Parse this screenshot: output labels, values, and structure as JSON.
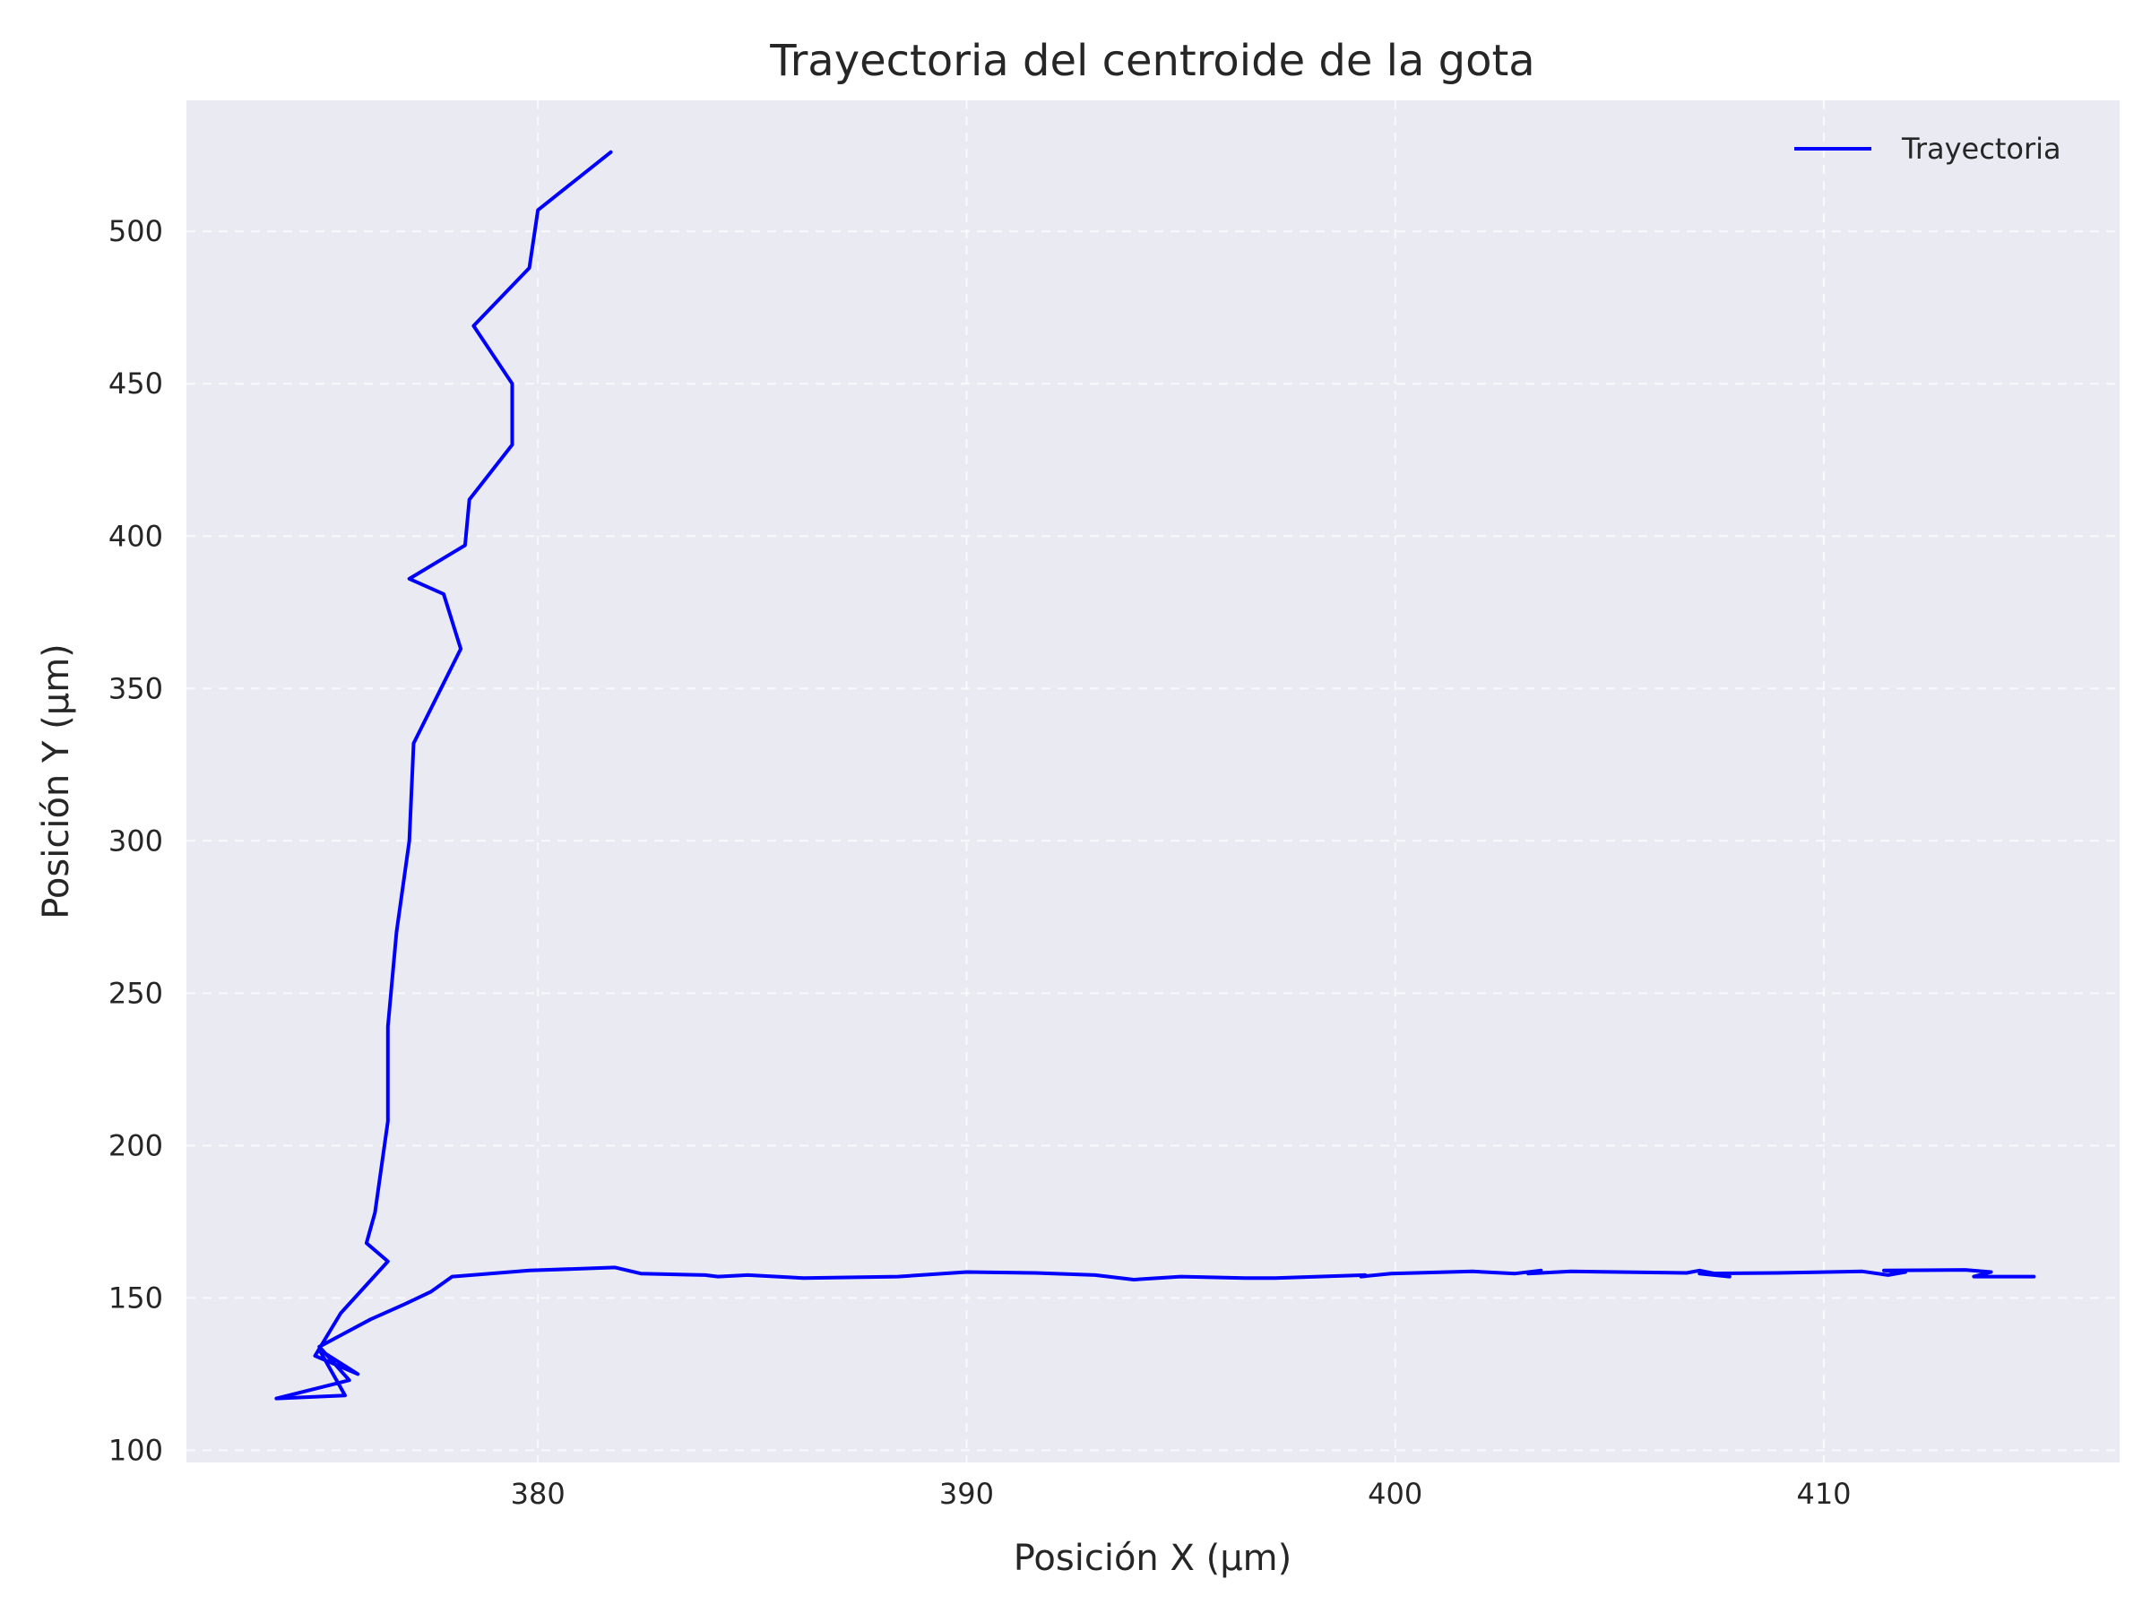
{
  "chart_data": {
    "type": "line",
    "title": "Trayectoria del centroide de la gota",
    "xlabel": "Posición X (µm)",
    "ylabel": "Posición Y (µm)",
    "xlim": [
      371.8,
      416.9
    ],
    "ylim": [
      96,
      543
    ],
    "xticks": [
      380,
      390,
      400,
      410
    ],
    "yticks": [
      100,
      150,
      200,
      250,
      300,
      350,
      400,
      450,
      500
    ],
    "grid": true,
    "legend_position": "top-right",
    "colors": {
      "plot_bg": "#eaeaf2",
      "line": "#0000ff",
      "text": "#262626"
    },
    "series": [
      {
        "name": "Trayectoria",
        "x": [
          381.7,
          380.0,
          379.8,
          378.5,
          379.4,
          379.4,
          378.4,
          378.3,
          377.0,
          377.8,
          378.2,
          377.1,
          377.0,
          376.7,
          376.5,
          376.5,
          376.2,
          376.0,
          376.5,
          375.4,
          374.8,
          375.8,
          374.9,
          375.5,
          373.9,
          375.6,
          374.9,
          376.1,
          376.9,
          377.5,
          378.0,
          379.8,
          381.8,
          382.4,
          383.9,
          384.2,
          384.9,
          386.2,
          388.4,
          390.0,
          391.6,
          393.0,
          393.9,
          395.0,
          396.5,
          397.2,
          399.3,
          399.2,
          399.9,
          401.8,
          402.8,
          403.4,
          403.1,
          404.1,
          406.8,
          407.1,
          407.8,
          407.1,
          408.9,
          410.9,
          411.5,
          411.9,
          411.4,
          413.3,
          413.9,
          413.5,
          414.9
        ],
        "y": [
          526,
          507,
          488,
          469,
          450,
          430,
          412,
          397,
          386,
          381,
          363,
          332,
          300,
          270,
          239,
          208,
          178,
          168,
          162,
          145,
          131,
          125,
          133,
          118,
          117,
          123,
          134,
          143,
          148,
          152,
          157,
          159,
          160,
          158,
          157.5,
          157,
          157.5,
          156.5,
          157,
          158.5,
          158.2,
          157.5,
          156,
          157,
          156.5,
          156.5,
          157.5,
          157,
          158,
          158.7,
          158,
          159,
          158,
          158.7,
          158.2,
          159,
          157,
          158,
          158.2,
          158.7,
          157.5,
          158.5,
          159,
          159.2,
          158.5,
          157,
          157
        ]
      }
    ]
  }
}
